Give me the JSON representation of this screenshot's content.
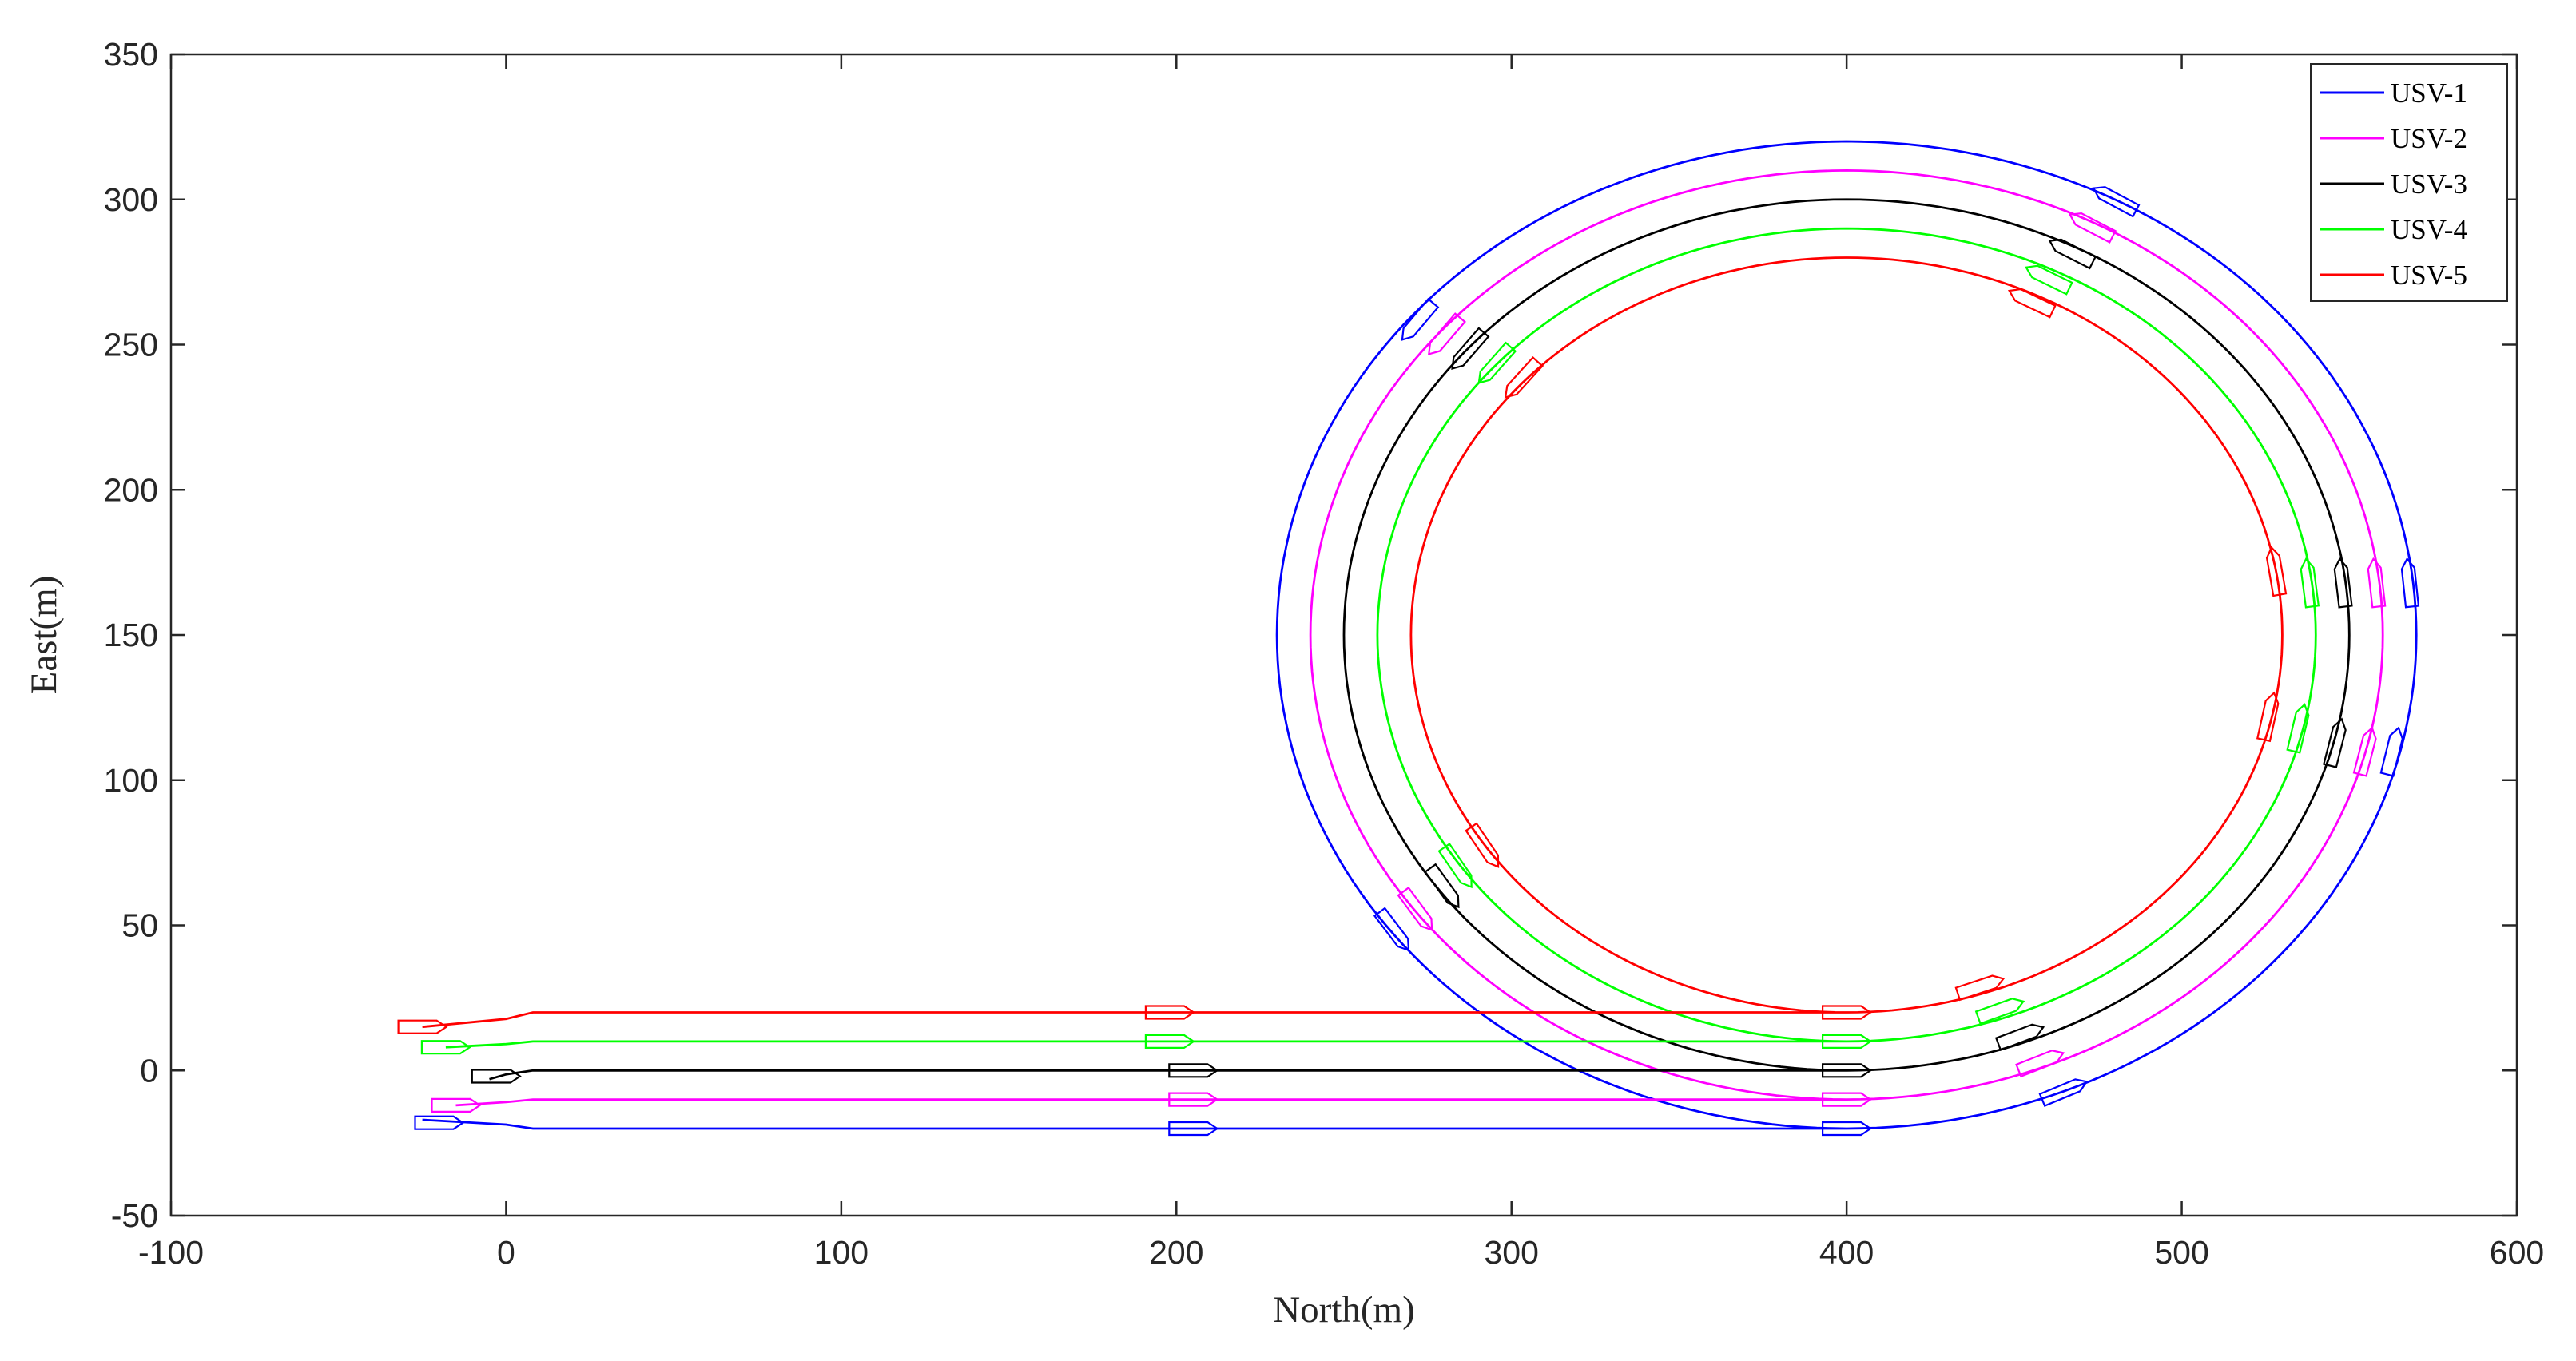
{
  "chart_data": {
    "type": "line",
    "title": "",
    "xlabel": "North(m)",
    "ylabel": "East(m)",
    "xlim": [
      -100,
      600
    ],
    "ylim": [
      -50,
      350
    ],
    "xticks": [
      -100,
      0,
      100,
      200,
      300,
      400,
      500,
      600
    ],
    "yticks": [
      -50,
      0,
      50,
      100,
      150,
      200,
      250,
      300,
      350
    ],
    "grid": false,
    "legend_position": "top-right",
    "circle_center": [
      400,
      150
    ],
    "series": [
      {
        "name": "USV-1",
        "color": "#0000ff",
        "start": [
          -25,
          -17
        ],
        "lane": -20,
        "radius": 170,
        "markers": [
          [
            -20,
            -18
          ],
          [
            205,
            -20
          ],
          [
            400,
            -20
          ],
          [
            465,
            -7
          ],
          [
            563,
            110
          ],
          [
            568,
            168
          ],
          [
            480,
            300
          ],
          [
            272,
            258
          ],
          [
            265,
            48
          ]
        ]
      },
      {
        "name": "USV-2",
        "color": "#ff00ff",
        "start": [
          -15,
          -12
        ],
        "lane": -10,
        "radius": 160,
        "markers": [
          [
            -15,
            -12
          ],
          [
            205,
            -10
          ],
          [
            400,
            -10
          ],
          [
            458,
            3
          ],
          [
            555,
            110
          ],
          [
            558,
            168
          ],
          [
            473,
            291
          ],
          [
            280,
            253
          ],
          [
            272,
            55
          ]
        ]
      },
      {
        "name": "USV-3",
        "color": "#000000",
        "start": [
          -5,
          -3
        ],
        "lane": 0,
        "radius": 150,
        "markers": [
          [
            -3,
            -2
          ],
          [
            205,
            0
          ],
          [
            400,
            0
          ],
          [
            452,
            12
          ],
          [
            546,
            113
          ],
          [
            548,
            168
          ],
          [
            467,
            282
          ],
          [
            287,
            248
          ],
          [
            280,
            63
          ]
        ]
      },
      {
        "name": "USV-4",
        "color": "#00ff00",
        "start": [
          -18,
          8
        ],
        "lane": 10,
        "radius": 140,
        "markers": [
          [
            -18,
            8
          ],
          [
            198,
            10
          ],
          [
            400,
            10
          ],
          [
            446,
            21
          ],
          [
            535,
            118
          ],
          [
            538,
            168
          ],
          [
            460,
            273
          ],
          [
            295,
            243
          ],
          [
            284,
            70
          ]
        ]
      },
      {
        "name": "USV-5",
        "color": "#ff0000",
        "start": [
          -25,
          15
        ],
        "lane": 20,
        "radius": 130,
        "markers": [
          [
            -25,
            15
          ],
          [
            198,
            20
          ],
          [
            400,
            20
          ],
          [
            440,
            29
          ],
          [
            526,
            122
          ],
          [
            528,
            172
          ],
          [
            455,
            265
          ],
          [
            303,
            238
          ],
          [
            292,
            77
          ]
        ]
      }
    ]
  }
}
